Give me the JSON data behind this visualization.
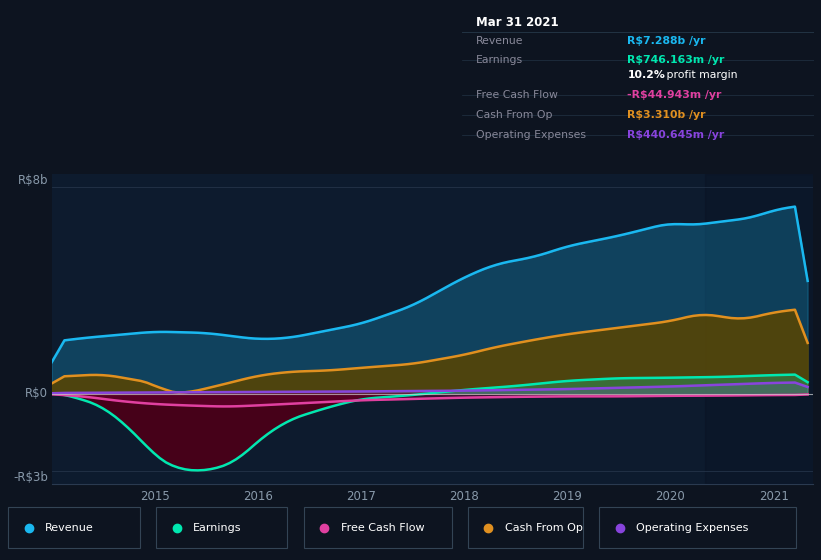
{
  "bg_color": "#0d1420",
  "plot_bg_color": "#0d1b2e",
  "y_label_top": "R$8b",
  "y_label_zero": "R$0",
  "y_label_bottom": "-R$3b",
  "x_ticks": [
    "2015",
    "2016",
    "2017",
    "2018",
    "2019",
    "2020",
    "2021"
  ],
  "ylim_min": -3500000000,
  "ylim_max": 8500000000,
  "colors": {
    "revenue": "#1ab8f0",
    "earnings": "#00e8b0",
    "free_cash_flow": "#e040a0",
    "cash_from_op": "#e09020",
    "operating_expenses": "#8844dd"
  },
  "info_box": {
    "bg": "#050a12",
    "title": "Mar 31 2021",
    "rows": [
      {
        "label": "Revenue",
        "value": "R$7.288b /yr",
        "value_color": "#1ab8f0"
      },
      {
        "label": "Earnings",
        "value": "R$746.163m /yr",
        "value_color": "#00e8b0"
      },
      {
        "label": "",
        "value": "10.2%",
        "value_color": "#ffffff",
        "suffix": " profit margin",
        "suffix_color": "#ffffff"
      },
      {
        "label": "Free Cash Flow",
        "value": "-R$44.943m /yr",
        "value_color": "#e040a0"
      },
      {
        "label": "Cash From Op",
        "value": "R$3.310b /yr",
        "value_color": "#e09020"
      },
      {
        "label": "Operating Expenses",
        "value": "R$440.645m /yr",
        "value_color": "#8844dd"
      }
    ],
    "label_color": "#888899",
    "title_color": "#ffffff",
    "border_color": "#334455",
    "divider_color": "#223344"
  },
  "legend": {
    "bg": "#0d1420",
    "border_color": "#334455",
    "items": [
      {
        "label": "Revenue",
        "color": "#1ab8f0"
      },
      {
        "label": "Earnings",
        "color": "#00e8b0"
      },
      {
        "label": "Free Cash Flow",
        "color": "#e040a0"
      },
      {
        "label": "Cash From Op",
        "color": "#e09020"
      },
      {
        "label": "Operating Expenses",
        "color": "#8844dd"
      }
    ]
  }
}
